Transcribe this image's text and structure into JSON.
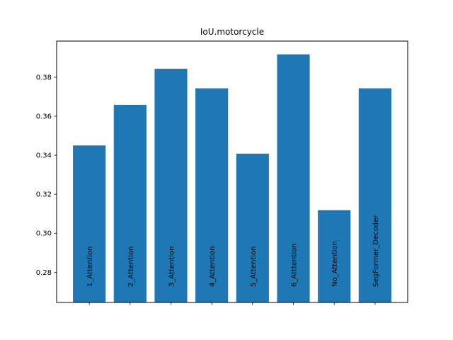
{
  "chart_data": {
    "type": "bar",
    "title": "IoU.motorcycle",
    "xlabel": "",
    "ylabel": "",
    "categories": [
      "1_Attention",
      "2_Attention",
      "3_Attention",
      "4_Attention",
      "5_Attention",
      "6_Atttention",
      "No_Attention",
      "SegFormer_Decoder"
    ],
    "values": [
      0.345,
      0.3658,
      0.3843,
      0.3743,
      0.3408,
      0.3917,
      0.3118,
      0.3743
    ],
    "ylim": [
      0.2645,
      0.3985
    ],
    "yticks": [
      "0.28",
      "0.30",
      "0.32",
      "0.34",
      "0.36",
      "0.38"
    ],
    "bar_color": "#1f77b4",
    "grid": false,
    "category_labels_inside_bars": true
  }
}
